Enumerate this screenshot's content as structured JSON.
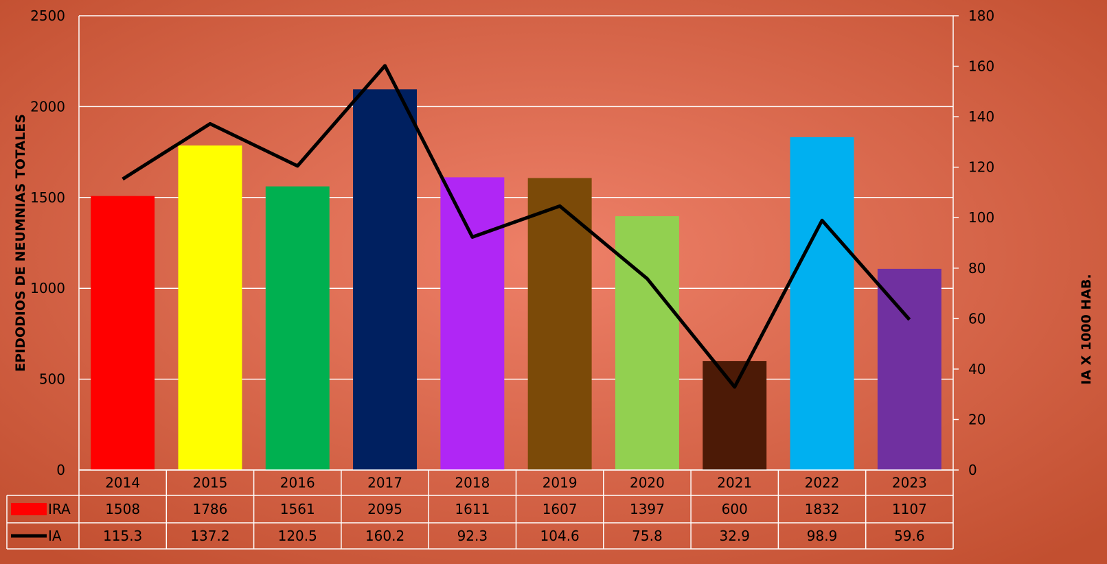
{
  "chart_data": {
    "type": "bar",
    "categories": [
      "2014",
      "2015",
      "2016",
      "2017",
      "2018",
      "2019",
      "2020",
      "2021",
      "2022",
      "2023"
    ],
    "series": [
      {
        "name": "IRA",
        "type": "bar",
        "color": "#ff0000",
        "bar_colors": [
          "#ff0000",
          "#ffff00",
          "#00b050",
          "#002060",
          "#b026f5",
          "#7b4a08",
          "#92d050",
          "#4c1a06",
          "#00b0f0",
          "#7030a0"
        ],
        "values": [
          1508,
          1786,
          1561,
          2095,
          1611,
          1607,
          1397,
          600,
          1832,
          1107
        ]
      },
      {
        "name": "IA",
        "type": "line",
        "color": "#000000",
        "axis": "y2",
        "values": [
          115.3,
          137.2,
          120.5,
          160.2,
          92.3,
          104.6,
          75.8,
          32.9,
          98.9,
          59.6
        ]
      }
    ],
    "ylabel": "EPIDODIOS DE NEUMNIAS TOTALES",
    "y2label": "IA X 1000  HAB.",
    "ylim": [
      0,
      2500
    ],
    "yticks": [
      0,
      500,
      1000,
      1500,
      2000,
      2500
    ],
    "y2lim": [
      0,
      180
    ],
    "y2ticks": [
      0,
      20,
      40,
      60,
      80,
      100,
      120,
      140,
      160,
      180
    ],
    "grid": true,
    "data_table": true
  }
}
